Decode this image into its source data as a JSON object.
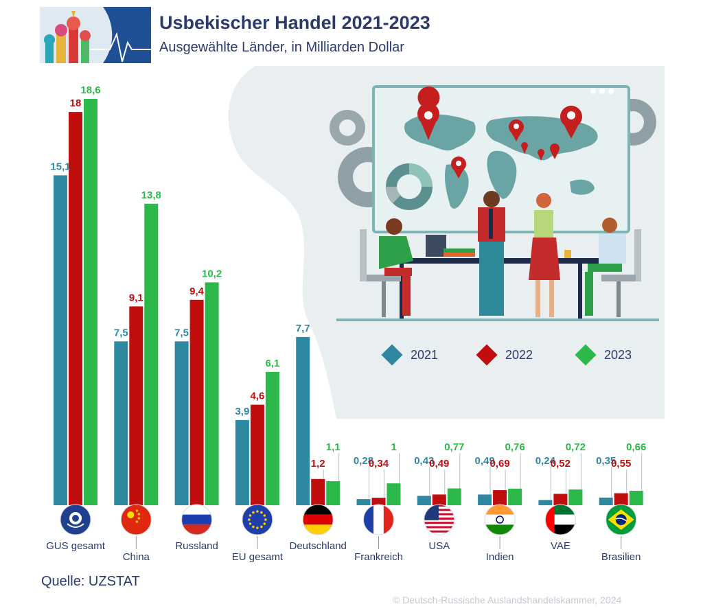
{
  "header": {
    "title": "Usbekischer Handel 2021-2023",
    "subtitle": "Ausgewählte Länder, in Milliarden Dollar"
  },
  "footer": {
    "source": "Quelle: UZSTAT",
    "copyright": "© Deutsch-Russische Auslandshandelskammer, 2024"
  },
  "colors": {
    "y2021": "#2e88a0",
    "y2022": "#c00d0d",
    "y2023": "#2db84a",
    "text": "#2c3a6b",
    "background_shape": "#e9eff1"
  },
  "legend": [
    {
      "label": "2021",
      "color": "#2e88a0"
    },
    {
      "label": "2022",
      "color": "#c00d0d"
    },
    {
      "label": "2023",
      "color": "#2db84a"
    }
  ],
  "chart_data": {
    "type": "bar",
    "title": "Usbekischer Handel 2021-2023",
    "subtitle": "Ausgewählte Länder, in Milliarden Dollar",
    "categories": [
      "GUS gesamt",
      "China",
      "Russland",
      "EU gesamt",
      "Deutschland",
      "Frankreich",
      "USA",
      "Indien",
      "VAE",
      "Brasilien"
    ],
    "flags": [
      "cis-emblem-icon",
      "china-flag-icon",
      "russia-flag-icon",
      "eu-flag-icon",
      "germany-flag-icon",
      "france-flag-icon",
      "usa-flag-icon",
      "india-flag-icon",
      "uae-flag-icon",
      "brazil-flag-icon"
    ],
    "series": [
      {
        "name": "2021",
        "color": "#2e88a0",
        "values": [
          15.1,
          7.5,
          7.5,
          3.9,
          7.7,
          0.28,
          0.43,
          0.49,
          0.24,
          0.35
        ],
        "labels": [
          "15,1",
          "7,5",
          "7,5",
          "3,9",
          "7,7",
          "0,28",
          "0,43",
          "0,49",
          "0,24",
          "0,35"
        ]
      },
      {
        "name": "2022",
        "color": "#c00d0d",
        "values": [
          18,
          9.1,
          9.4,
          4.6,
          1.2,
          0.34,
          0.49,
          0.69,
          0.52,
          0.55
        ],
        "labels": [
          "18",
          "9,1",
          "9,4",
          "4,6",
          "1,2",
          "0,34",
          "0,49",
          "0,69",
          "0,52",
          "0,55"
        ]
      },
      {
        "name": "2023",
        "color": "#2db84a",
        "values": [
          18.6,
          13.8,
          10.2,
          6.1,
          1.1,
          1,
          0.77,
          0.76,
          0.72,
          0.66
        ],
        "labels": [
          "18,6",
          "13,8",
          "10,2",
          "6,1",
          "1,1",
          "1",
          "0,77",
          "0,76",
          "0,72",
          "0,66"
        ]
      }
    ],
    "ylim": [
      0,
      18.6
    ],
    "grid": false,
    "legend_position": "right"
  }
}
